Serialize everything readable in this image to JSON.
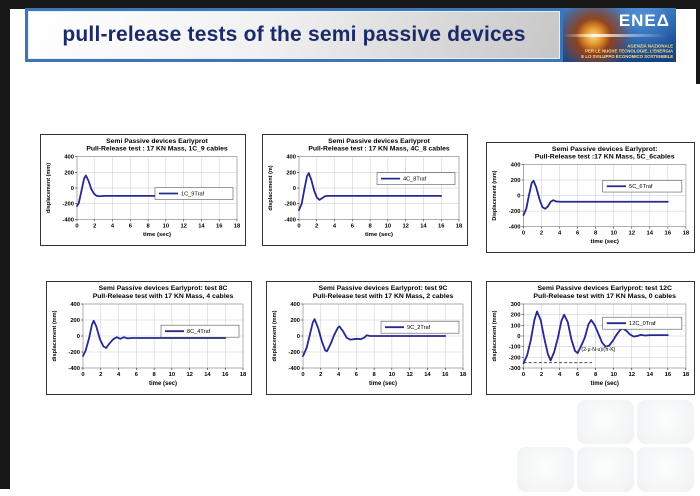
{
  "slide": {
    "title": "pull-release tests of the semi passive devices",
    "background_color": "#ffffff",
    "frame_color": "#181818",
    "banner_border_color": "#3a76b8",
    "title_color": "#1b2a6b"
  },
  "logo": {
    "wordmark": "ENEΔ",
    "caption_lines": [
      "AGENZIA NAZIONALE",
      "PER LE NUOVE TECNOLOGIE, L'ENERGIA",
      "E LO SVILUPPO ECONOMICO SOSTENIBILE"
    ],
    "bg_color": "#1f5aa5",
    "flame_color": "#f59b1e"
  },
  "chart_data": [
    {
      "type": "line",
      "title_line1": "Semi Passive devices Earlyprot",
      "title_line2": "Pull-Release test : 17 KN Mass, 1C_9 cables",
      "xlabel": "time (sec)",
      "ylabel": "displacement (mm)",
      "xlim": [
        0,
        18
      ],
      "xticks": [
        0,
        2,
        4,
        6,
        8,
        10,
        12,
        14,
        16,
        18
      ],
      "ylim": [
        -400,
        400
      ],
      "yticks": [
        -400,
        -200,
        0,
        200,
        400
      ],
      "grid": true,
      "legend": "1C_9Traf",
      "legend_position": "right-middle",
      "legend_y": -70,
      "line_color": "#26298f",
      "points": [
        [
          0,
          -230
        ],
        [
          0.2,
          -190
        ],
        [
          0.5,
          -40
        ],
        [
          0.8,
          120
        ],
        [
          1.0,
          160
        ],
        [
          1.3,
          90
        ],
        [
          1.6,
          -10
        ],
        [
          1.9,
          -70
        ],
        [
          2.2,
          -100
        ],
        [
          2.6,
          -105
        ],
        [
          3,
          -100
        ],
        [
          16,
          -100
        ]
      ]
    },
    {
      "type": "line",
      "title_line1": "Semi Passive devices Earlyprot",
      "title_line2": "Pull-Release test : 17 KN Mass, 4C_8 cables",
      "xlabel": "time (sec)",
      "ylabel": "displacement (m)",
      "xlim": [
        0,
        18
      ],
      "xticks": [
        0,
        2,
        4,
        6,
        8,
        10,
        12,
        14,
        16,
        18
      ],
      "ylim": [
        -400,
        400
      ],
      "yticks": [
        -400,
        -200,
        0,
        200,
        400
      ],
      "grid": true,
      "legend": "4C_8Traf",
      "legend_position": "right-middle",
      "legend_y": 120,
      "line_color": "#26298f",
      "points": [
        [
          0,
          -280
        ],
        [
          0.3,
          -200
        ],
        [
          0.6,
          -20
        ],
        [
          0.9,
          150
        ],
        [
          1.1,
          190
        ],
        [
          1.4,
          100
        ],
        [
          1.7,
          -30
        ],
        [
          2.0,
          -120
        ],
        [
          2.3,
          -150
        ],
        [
          2.6,
          -130
        ],
        [
          2.9,
          -105
        ],
        [
          3.2,
          -100
        ],
        [
          16,
          -100
        ]
      ]
    },
    {
      "type": "line",
      "title_line1": "Semi Passive devices Earlyprot:",
      "title_line2": "Pull-Release test :17 KN Mass, 5C_6cables",
      "xlabel": "time (sec)",
      "ylabel": "Displacement (mm)",
      "xlim": [
        0,
        18
      ],
      "xticks": [
        0,
        2,
        4,
        6,
        8,
        10,
        12,
        14,
        16,
        18
      ],
      "ylim": [
        -400,
        400
      ],
      "yticks": [
        -400,
        -200,
        0,
        200,
        400
      ],
      "grid": true,
      "legend": "5C_6Traf",
      "legend_position": "right-middle",
      "legend_y": 120,
      "line_color": "#26298f",
      "points": [
        [
          0,
          -250
        ],
        [
          0.3,
          -170
        ],
        [
          0.6,
          0
        ],
        [
          0.9,
          160
        ],
        [
          1.1,
          190
        ],
        [
          1.4,
          110
        ],
        [
          1.8,
          -60
        ],
        [
          2.1,
          -150
        ],
        [
          2.4,
          -170
        ],
        [
          2.7,
          -140
        ],
        [
          3.0,
          -80
        ],
        [
          3.3,
          -60
        ],
        [
          3.6,
          -75
        ],
        [
          4.0,
          -80
        ],
        [
          16,
          -80
        ]
      ]
    },
    {
      "type": "line",
      "title_line1": "Semi Passive devices Earlyprot: test 8C",
      "title_line2": "Pull-Release test with 17 KN Mass, 4 cables",
      "xlabel": "time (sec)",
      "ylabel": "displacement (mm)",
      "xlim": [
        0,
        18
      ],
      "xticks": [
        0,
        2,
        4,
        6,
        8,
        10,
        12,
        14,
        16,
        18
      ],
      "ylim": [
        -400,
        400
      ],
      "yticks": [
        -400,
        -200,
        0,
        200,
        400
      ],
      "grid": true,
      "legend": "8C_4Traf",
      "legend_position": "right-middle",
      "legend_y": 60,
      "line_color": "#26298f",
      "points": [
        [
          0,
          -250
        ],
        [
          0.3,
          -180
        ],
        [
          0.7,
          -20
        ],
        [
          1.0,
          140
        ],
        [
          1.2,
          190
        ],
        [
          1.5,
          120
        ],
        [
          1.9,
          -40
        ],
        [
          2.3,
          -130
        ],
        [
          2.6,
          -150
        ],
        [
          3.0,
          -90
        ],
        [
          3.4,
          -40
        ],
        [
          3.8,
          -15
        ],
        [
          4.2,
          -35
        ],
        [
          4.6,
          -15
        ],
        [
          5.0,
          -30
        ],
        [
          5.5,
          -25
        ],
        [
          16,
          -25
        ]
      ]
    },
    {
      "type": "line",
      "title_line1": "Semi Passive devices Earlyprot: test 9C",
      "title_line2": "Pull-Release test with 17 KN Mass, 2 cables",
      "xlabel": "time (sec)",
      "ylabel": "displacement (mm)",
      "xlim": [
        0,
        18
      ],
      "xticks": [
        0,
        2,
        4,
        6,
        8,
        10,
        12,
        14,
        16,
        18
      ],
      "ylim": [
        -400,
        400
      ],
      "yticks": [
        -400,
        -200,
        0,
        200,
        400
      ],
      "grid": true,
      "legend": "9C_2Traf",
      "legend_position": "right-middle",
      "legend_y": 110,
      "line_color": "#26298f",
      "points": [
        [
          0,
          -250
        ],
        [
          0.4,
          -150
        ],
        [
          0.8,
          30
        ],
        [
          1.1,
          170
        ],
        [
          1.3,
          210
        ],
        [
          1.7,
          100
        ],
        [
          2.1,
          -60
        ],
        [
          2.5,
          -180
        ],
        [
          2.7,
          -190
        ],
        [
          3.1,
          -100
        ],
        [
          3.5,
          10
        ],
        [
          3.9,
          100
        ],
        [
          4.1,
          120
        ],
        [
          4.5,
          60
        ],
        [
          4.9,
          -20
        ],
        [
          5.3,
          -45
        ],
        [
          5.7,
          -40
        ],
        [
          6.1,
          -35
        ],
        [
          6.5,
          -40
        ],
        [
          6.9,
          -20
        ],
        [
          7.2,
          10
        ],
        [
          7.5,
          0
        ],
        [
          16,
          0
        ]
      ]
    },
    {
      "type": "line",
      "title_line1": "Semi Passive devices Earlyprot: test 12C",
      "title_line2": "Pull-Release test with 17 KN Mass, 0 cables",
      "xlabel": "time (sec)",
      "ylabel": "displacement (mm)",
      "xlim": [
        0,
        18
      ],
      "xticks": [
        0,
        2,
        4,
        6,
        8,
        10,
        12,
        14,
        16,
        18
      ],
      "ylim": [
        -300,
        300
      ],
      "yticks": [
        -300,
        -200,
        -100,
        0,
        100,
        200,
        300
      ],
      "grid": true,
      "legend": "12C_0Traf",
      "legend_position": "right-middle",
      "legend_y": 120,
      "line_color": "#26298f",
      "annotation": {
        "text": "(2·μ·N·u)/(π·K)",
        "x": 8.3,
        "y": -140
      },
      "dashed_line": {
        "y": -250,
        "x0": 0,
        "x1": 7.6
      },
      "points": [
        [
          0,
          -255
        ],
        [
          0.4,
          -180
        ],
        [
          0.8,
          -40
        ],
        [
          1.2,
          150
        ],
        [
          1.5,
          230
        ],
        [
          1.9,
          150
        ],
        [
          2.3,
          -20
        ],
        [
          2.7,
          -170
        ],
        [
          3.0,
          -230
        ],
        [
          3.4,
          -150
        ],
        [
          3.8,
          -20
        ],
        [
          4.2,
          140
        ],
        [
          4.5,
          200
        ],
        [
          4.9,
          130
        ],
        [
          5.3,
          -30
        ],
        [
          5.7,
          -140
        ],
        [
          6.0,
          -160
        ],
        [
          6.4,
          -90
        ],
        [
          6.8,
          -15
        ],
        [
          7.2,
          110
        ],
        [
          7.5,
          150
        ],
        [
          7.9,
          100
        ],
        [
          8.3,
          20
        ],
        [
          8.7,
          -60
        ],
        [
          9.1,
          -100
        ],
        [
          9.5,
          -90
        ],
        [
          9.9,
          -45
        ],
        [
          10.3,
          10
        ],
        [
          10.7,
          55
        ],
        [
          11.0,
          70
        ],
        [
          11.4,
          50
        ],
        [
          11.8,
          15
        ],
        [
          12.2,
          -5
        ],
        [
          12.6,
          0
        ],
        [
          13.0,
          10
        ],
        [
          13.5,
          5
        ],
        [
          14.0,
          8
        ],
        [
          16,
          8
        ]
      ]
    }
  ]
}
